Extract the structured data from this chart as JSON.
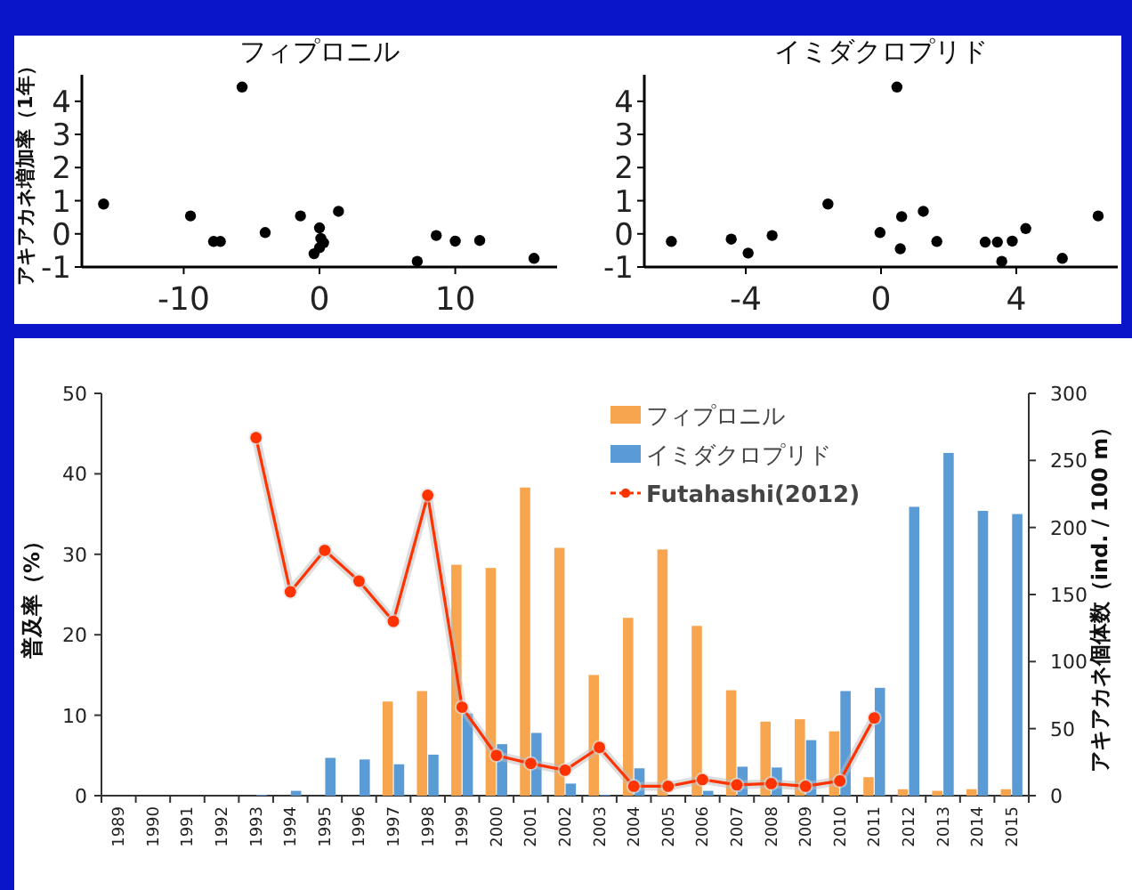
{
  "chart_data": [
    {
      "type": "scatter",
      "title": "フィプロニル",
      "ylabel": "アキアカネ増加率（1年）",
      "color": "#000000",
      "marker": "circle",
      "xlim": [
        -17.5,
        17.5
      ],
      "xticks": [
        -10,
        0,
        10
      ],
      "ylim": [
        -1,
        4.8
      ],
      "yticks": [
        -1,
        0,
        1,
        2,
        3,
        4
      ],
      "x": [
        -15.9,
        -5.7,
        -9.5,
        -7.8,
        -7.3,
        -4.0,
        -1.4,
        0,
        0.1,
        0.3,
        -0.4,
        0,
        1.4,
        7.2,
        8.6,
        10,
        11.8,
        15.8
      ],
      "values": [
        0.9,
        4.43,
        0.54,
        -0.23,
        -0.23,
        0.04,
        0.54,
        0.18,
        -0.14,
        -0.27,
        -0.6,
        -0.42,
        0.68,
        -0.83,
        -0.05,
        -0.22,
        -0.2,
        -0.74
      ]
    },
    {
      "type": "scatter",
      "title": "イミダクロプリド",
      "color": "#000000",
      "marker": "circle",
      "xlim": [
        -7,
        7
      ],
      "xticks": [
        -4,
        0,
        4
      ],
      "ylim": [
        -1,
        4.8
      ],
      "yticks": [
        -1,
        0,
        1,
        2,
        3,
        4
      ],
      "x": [
        -6.2,
        -4.43,
        -3.93,
        -3.22,
        -1.57,
        -0.03,
        0.47,
        0.61,
        0.57,
        1.25,
        1.65,
        3.08,
        3.44,
        3.88,
        3.57,
        4.28,
        5.36,
        6.42
      ],
      "values": [
        -0.23,
        -0.16,
        -0.58,
        -0.05,
        0.9,
        0.04,
        4.43,
        0.52,
        -0.45,
        0.68,
        -0.23,
        -0.25,
        -0.25,
        -0.22,
        -0.83,
        0.16,
        -0.74,
        0.54
      ]
    },
    {
      "type": "bar",
      "ylabel": "普及率（%）",
      "y2label": "アキアカネ個体数（ind. / 100 m）",
      "ylim": [
        0,
        50
      ],
      "yticks": [
        0,
        10,
        20,
        30,
        40,
        50
      ],
      "y2lim": [
        0,
        300
      ],
      "y2ticks": [
        0,
        50,
        100,
        150,
        200,
        250,
        300
      ],
      "legend": "top right",
      "marker": "circle",
      "categories": [
        "1989",
        "1990",
        "1991",
        "1992",
        "1993",
        "1994",
        "1995",
        "1996",
        "1997",
        "1998",
        "1999",
        "2000",
        "2001",
        "2002",
        "2003",
        "2004",
        "2005",
        "2006",
        "2007",
        "2008",
        "2009",
        "2010",
        "2011",
        "2012",
        "2013",
        "2014",
        "2015"
      ],
      "series": [
        {
          "name": "フィプロニル",
          "color": "#f7a54f",
          "values": [
            null,
            null,
            null,
            null,
            null,
            null,
            null,
            null,
            11.7,
            13.0,
            28.7,
            28.3,
            38.3,
            30.8,
            15.0,
            22.1,
            30.6,
            21.1,
            13.1,
            9.2,
            9.5,
            8.0,
            2.3,
            0.8,
            0.6,
            0.8,
            0.8
          ]
        },
        {
          "name": "イミダクロプリド",
          "color": "#5b9bd5",
          "values": [
            null,
            null,
            null,
            null,
            0.1,
            0.6,
            4.7,
            4.5,
            3.9,
            5.1,
            10.2,
            6.4,
            7.8,
            1.5,
            0.1,
            3.4,
            null,
            0.6,
            3.6,
            3.5,
            6.9,
            13.0,
            13.4,
            35.9,
            42.6,
            35.4,
            35.0
          ]
        },
        {
          "name": "Futahashi(2012)",
          "type": "line",
          "axis": "y2",
          "color": "#ff3300",
          "values": [
            null,
            null,
            null,
            null,
            267,
            152,
            183,
            160,
            130,
            224,
            66,
            30,
            24,
            19,
            36,
            7,
            7,
            12,
            8,
            9,
            7,
            11,
            58,
            null,
            null,
            null,
            null
          ]
        }
      ]
    }
  ]
}
